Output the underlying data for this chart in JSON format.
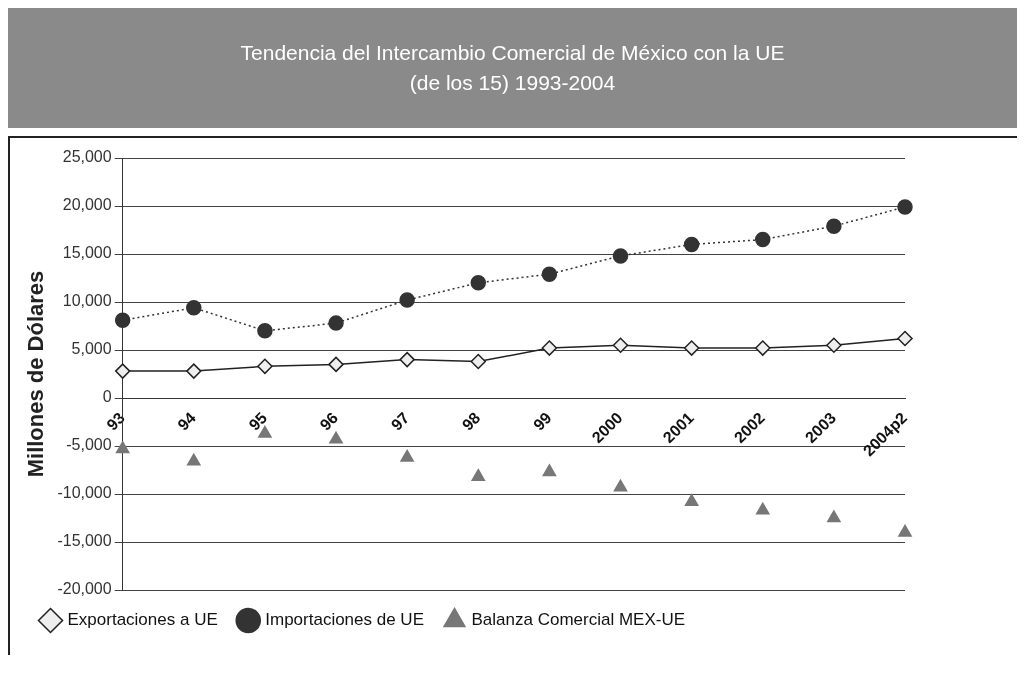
{
  "chart_data": {
    "type": "line",
    "title": "Tendencia del Intercambio Comercial de México con la UE (de los 15) 1993-2004",
    "ylabel": "Millones de Dólares",
    "categories": [
      "93",
      "94",
      "95",
      "96",
      "97",
      "98",
      "99",
      "2000",
      "2001",
      "2002",
      "2003",
      "2004p2"
    ],
    "series": [
      {
        "name": "Exportaciones a UE",
        "color": "#222222",
        "marker": "diamond",
        "line_style": "solid",
        "values": [
          2800,
          2800,
          3300,
          3500,
          4000,
          3800,
          5200,
          5500,
          5200,
          5200,
          5500,
          6200
        ]
      },
      {
        "name": "Importaciones de UE",
        "color": "#333333",
        "marker": "circle",
        "line_style": "dotted",
        "values": [
          8100,
          9400,
          7000,
          7800,
          10200,
          12000,
          12900,
          14800,
          16000,
          16500,
          17900,
          19900
        ]
      },
      {
        "name": "Balanza Comercial MEX-UE",
        "type": "scatter",
        "color": "#777777",
        "marker": "triangle",
        "values": [
          -5300,
          -6600,
          -3700,
          -4300,
          -6200,
          -8200,
          -7700,
          -9300,
          -10800,
          -11700,
          -12500,
          -14000
        ]
      }
    ],
    "ylim": [
      -20000,
      25000
    ],
    "yticks": [
      {
        "value": -20000,
        "label": "-20,000"
      },
      {
        "value": -15000,
        "label": "-15,000"
      },
      {
        "value": -10000,
        "label": "-10,000"
      },
      {
        "value": -5000,
        "label": "-5,000"
      },
      0,
      {
        "value": 5000,
        "label": "5,000"
      },
      {
        "value": 10000,
        "label": "10,000"
      },
      {
        "value": 15000,
        "label": "15,000"
      },
      {
        "value": 20000,
        "label": "20,000"
      },
      {
        "value": 25000,
        "label": "25,000"
      }
    ],
    "grid": "y",
    "legend": "bottom left"
  }
}
